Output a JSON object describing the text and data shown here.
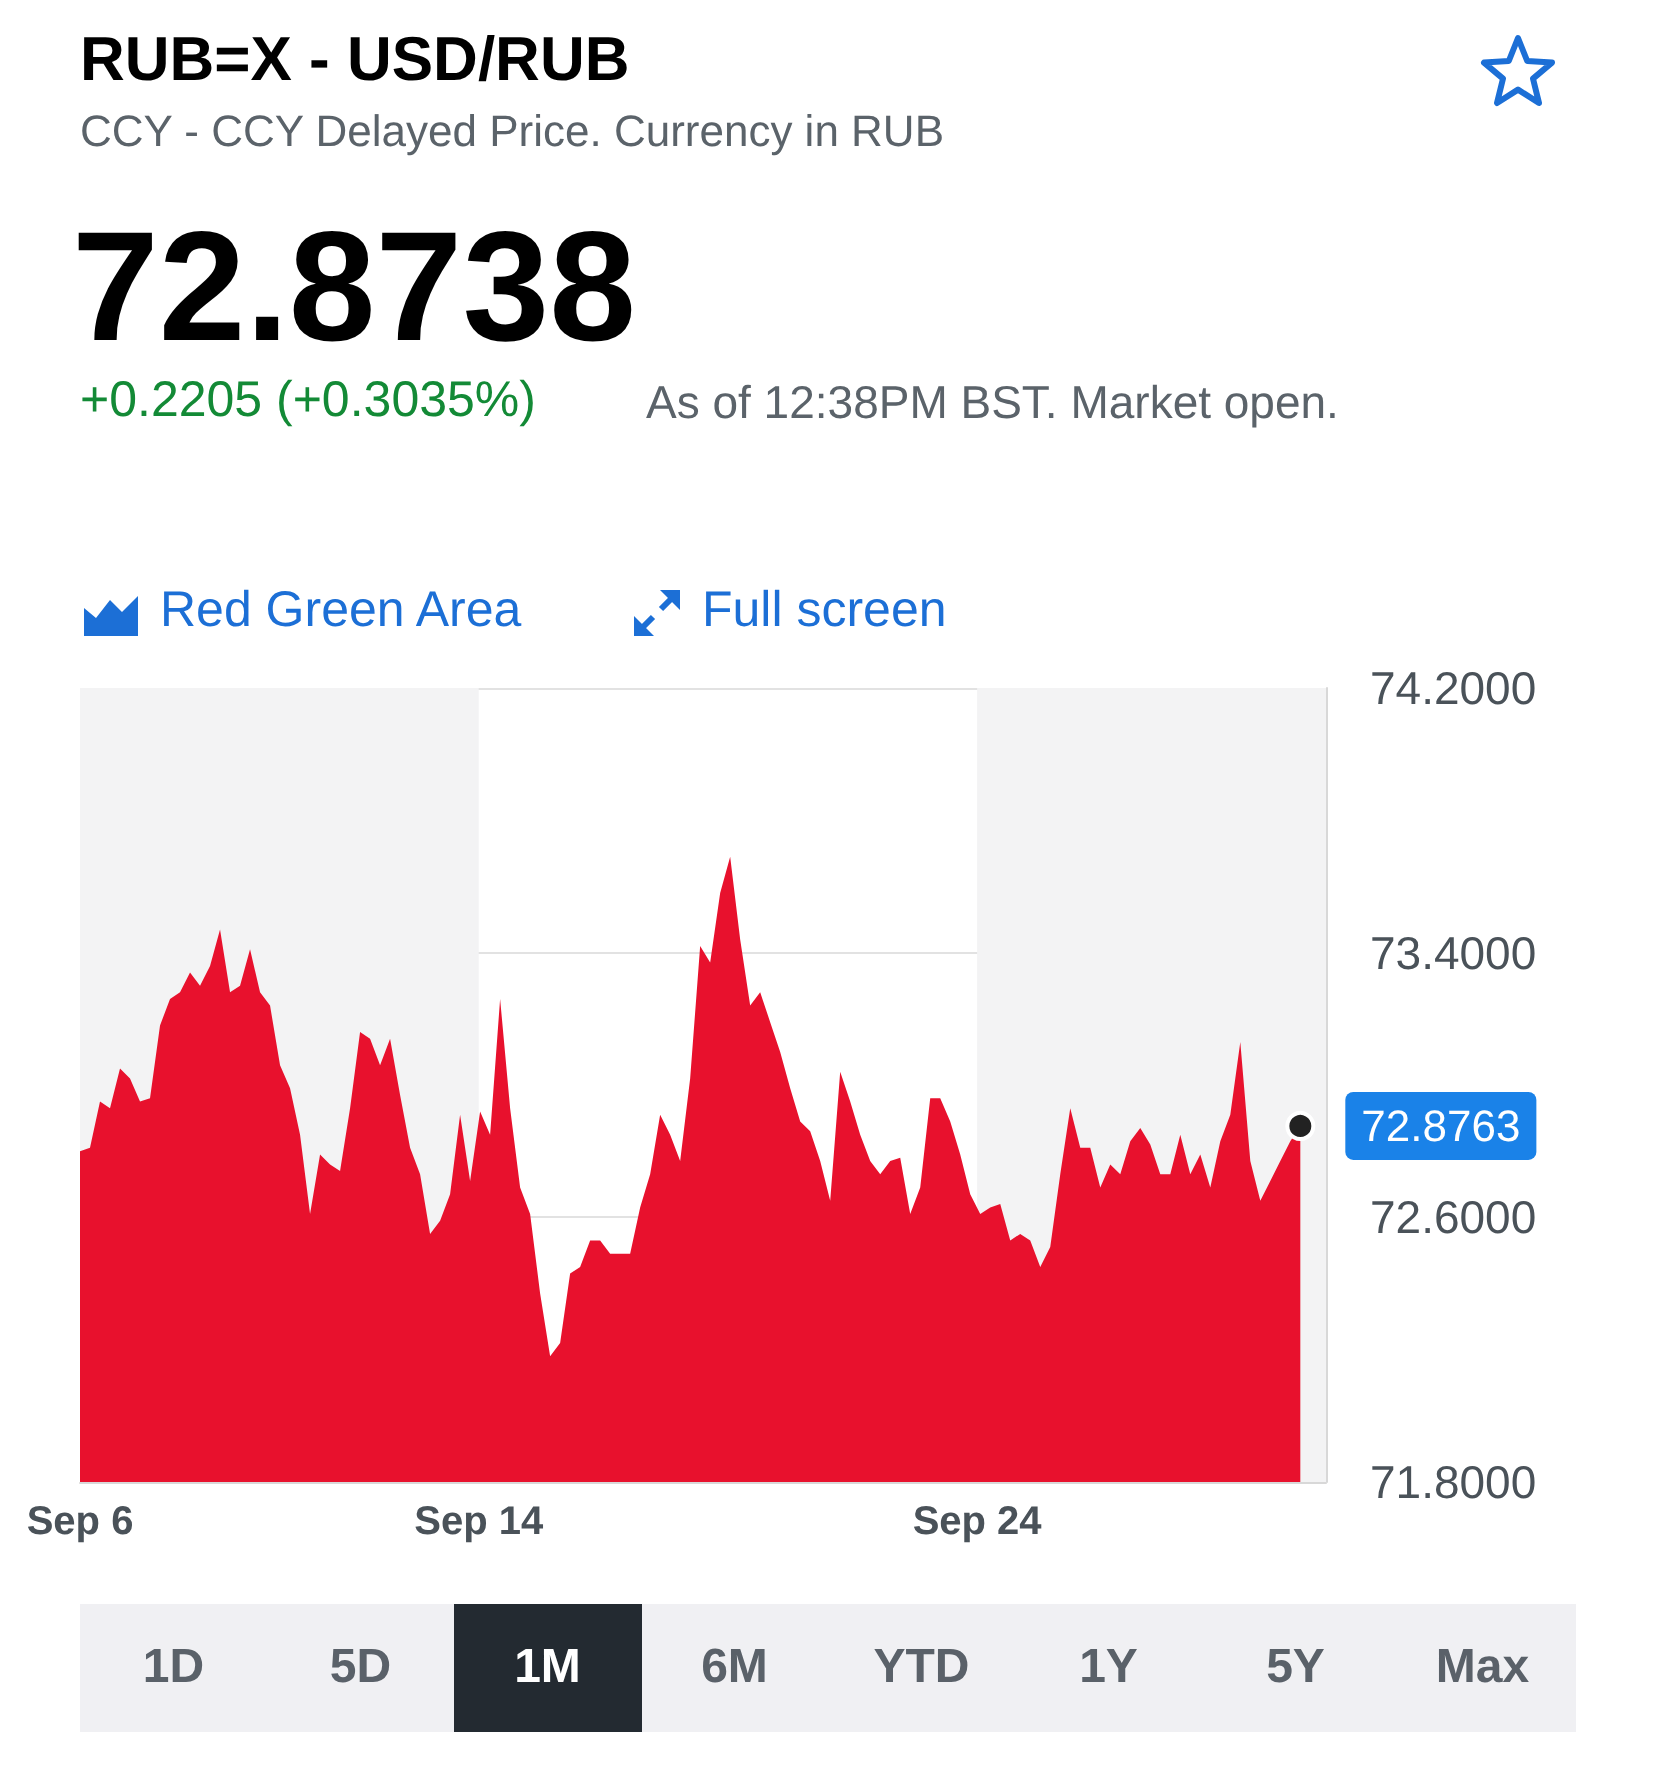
{
  "chart_data": {
    "type": "area",
    "title": "RUB=X - USD/RUB",
    "subtitle": "CCY - CCY Delayed Price. Currency in RUB",
    "annotations": [
      "72.8738",
      "+0.2205 (+0.3035%)",
      "As of 12:38PM BST. Market open.",
      "Red Green Area",
      "Full screen",
      "1D",
      "5D",
      "1M",
      "6M",
      "YTD",
      "1Y",
      "5Y",
      "Max"
    ],
    "x": [
      "--09-06T00:00",
      "--09-06T04:49",
      "--09-06T09:38",
      "--09-06T14:27",
      "--09-06T19:16",
      "--09-07T00:05",
      "--09-07T04:54",
      "--09-07T09:43",
      "--09-07T14:32",
      "--09-07T19:21",
      "--09-08T00:10",
      "--09-08T04:59",
      "--09-08T09:48",
      "--09-08T14:37",
      "--09-08T19:26",
      "--09-09T00:15",
      "--09-09T05:04",
      "--09-09T09:53",
      "--09-09T14:42",
      "--09-09T19:31",
      "--09-10T00:20",
      "--09-10T05:09",
      "--09-10T09:58",
      "--09-10T14:47",
      "--09-10T19:36",
      "--09-11T00:25",
      "--09-11T05:14",
      "--09-11T10:03",
      "--09-11T14:52",
      "--09-11T19:41",
      "--09-12T00:30",
      "--09-12T05:19",
      "--09-12T10:08",
      "--09-12T14:57",
      "--09-12T19:46",
      "--09-13T00:35",
      "--09-13T05:24",
      "--09-13T10:13",
      "--09-13T15:02",
      "--09-13T19:51",
      "--09-14T00:40",
      "--09-14T05:29",
      "--09-14T10:18",
      "--09-14T15:07",
      "--09-14T19:56",
      "--09-15T00:45",
      "--09-15T05:34",
      "--09-15T10:23",
      "--09-15T15:12",
      "--09-15T20:01",
      "--09-16T00:50",
      "--09-16T05:39",
      "--09-16T10:28",
      "--09-16T15:17",
      "--09-16T20:06",
      "--09-17T00:55",
      "--09-17T05:44",
      "--09-17T10:33",
      "--09-17T15:22",
      "--09-17T20:11",
      "--09-18T01:00",
      "--09-18T05:49",
      "--09-18T10:38",
      "--09-18T15:27",
      "--09-18T20:16",
      "--09-19T01:05",
      "--09-19T05:54",
      "--09-19T10:43",
      "--09-19T15:32",
      "--09-19T20:21",
      "--09-20T01:10",
      "--09-20T05:59",
      "--09-20T10:48",
      "--09-20T15:37",
      "--09-20T20:26",
      "--09-21T01:15",
      "--09-21T06:04",
      "--09-21T10:53",
      "--09-21T15:42",
      "--09-21T20:31",
      "--09-22T01:20",
      "--09-22T06:09",
      "--09-22T10:58",
      "--09-22T15:47",
      "--09-22T20:36",
      "--09-23T01:25",
      "--09-23T06:14",
      "--09-23T11:03",
      "--09-23T15:52",
      "--09-23T20:41",
      "--09-24T01:30",
      "--09-24T06:19",
      "--09-24T11:08",
      "--09-24T15:57",
      "--09-24T20:46",
      "--09-25T01:35",
      "--09-25T06:24",
      "--09-25T11:13",
      "--09-25T16:02",
      "--09-25T20:51",
      "--09-26T01:40",
      "--09-26T06:29",
      "--09-26T11:18",
      "--09-26T16:07",
      "--09-26T20:56",
      "--09-27T01:45",
      "--09-27T06:34",
      "--09-27T11:23",
      "--09-27T16:12",
      "--09-27T21:01",
      "--09-28T01:50",
      "--09-28T06:39",
      "--09-28T11:28",
      "--09-28T16:17",
      "--09-28T21:06",
      "--09-29T01:55",
      "--09-29T06:44",
      "--09-29T11:33",
      "--09-29T16:22",
      "--09-29T21:11",
      "--09-30T02:00",
      "--09-30T06:49",
      "--09-30T11:38"
    ],
    "values": [
      72.8,
      72.81,
      72.95,
      72.93,
      73.05,
      73.02,
      72.95,
      72.96,
      73.18,
      73.26,
      73.28,
      73.34,
      73.3,
      73.36,
      73.47,
      73.28,
      73.3,
      73.41,
      73.28,
      73.24,
      73.06,
      72.99,
      72.85,
      72.61,
      72.79,
      72.76,
      72.74,
      72.93,
      73.16,
      73.14,
      73.06,
      73.14,
      72.97,
      72.81,
      72.73,
      72.55,
      72.59,
      72.67,
      72.91,
      72.71,
      72.92,
      72.85,
      73.26,
      72.93,
      72.69,
      72.61,
      72.37,
      72.18,
      72.22,
      72.43,
      72.45,
      72.53,
      72.53,
      72.49,
      72.49,
      72.49,
      72.63,
      72.73,
      72.91,
      72.85,
      72.77,
      73.02,
      73.42,
      73.37,
      73.58,
      73.69,
      73.44,
      73.24,
      73.28,
      73.19,
      73.1,
      72.99,
      72.89,
      72.86,
      72.77,
      72.65,
      73.04,
      72.95,
      72.85,
      72.77,
      72.73,
      72.77,
      72.78,
      72.61,
      72.69,
      72.96,
      72.96,
      72.89,
      72.79,
      72.67,
      72.61,
      72.63,
      72.64,
      72.53,
      72.55,
      72.53,
      72.45,
      72.51,
      72.73,
      72.93,
      72.81,
      72.81,
      72.69,
      72.76,
      72.73,
      72.83,
      72.87,
      72.82,
      72.73,
      72.73,
      72.85,
      72.73,
      72.79,
      72.69,
      72.83,
      72.91,
      73.13,
      72.77,
      72.65,
      72.71,
      72.77,
      72.83,
      72.8763
    ],
    "value_labels": [
      null,
      null,
      null,
      null,
      null,
      null,
      null,
      null,
      null,
      null,
      null,
      null,
      null,
      null,
      null,
      null,
      null,
      null,
      null,
      null,
      null,
      null,
      null,
      null,
      null,
      null,
      null,
      null,
      null,
      null,
      null,
      null,
      null,
      null,
      null,
      null,
      null,
      null,
      null,
      null,
      null,
      null,
      null,
      null,
      null,
      null,
      null,
      null,
      null,
      null,
      null,
      null,
      null,
      null,
      null,
      null,
      null,
      null,
      null,
      null,
      null,
      null,
      null,
      null,
      null,
      null,
      null,
      null,
      null,
      null,
      null,
      null,
      null,
      null,
      null,
      null,
      null,
      null,
      null,
      null,
      null,
      null,
      null,
      null,
      null,
      null,
      null,
      null,
      null,
      null,
      null,
      null,
      null,
      null,
      null,
      null,
      null,
      null,
      null,
      null,
      null,
      null,
      null,
      null,
      null,
      null,
      null,
      null,
      null,
      null,
      null,
      null,
      null,
      null,
      null,
      null,
      null,
      null,
      null,
      null,
      null,
      null,
      "72.8763"
    ],
    "color": "#e8112d",
    "xlim": [
      "--09-06",
      "--10-01"
    ],
    "xticks": [
      {
        "value": "--09-06",
        "label": "Sep 6"
      },
      {
        "value": "--09-14",
        "label": "Sep 14"
      },
      {
        "value": "--09-24",
        "label": "Sep 24"
      }
    ],
    "ylim": [
      71.8,
      74.2
    ],
    "yticks": [
      {
        "value": 74.2,
        "label": "74.2000"
      },
      {
        "value": 73.4,
        "label": "73.4000"
      },
      {
        "value": 72.6,
        "label": "72.6000"
      },
      {
        "value": 71.8,
        "label": "71.8000"
      }
    ],
    "grid": "y",
    "bands": [
      {
        "axis": "x",
        "from": "--09-06",
        "to": "--09-14",
        "color": "#f3f3f4"
      },
      {
        "axis": "x",
        "from": "--09-24",
        "to": "--10-01",
        "color": "#f3f3f4"
      }
    ]
  }
}
